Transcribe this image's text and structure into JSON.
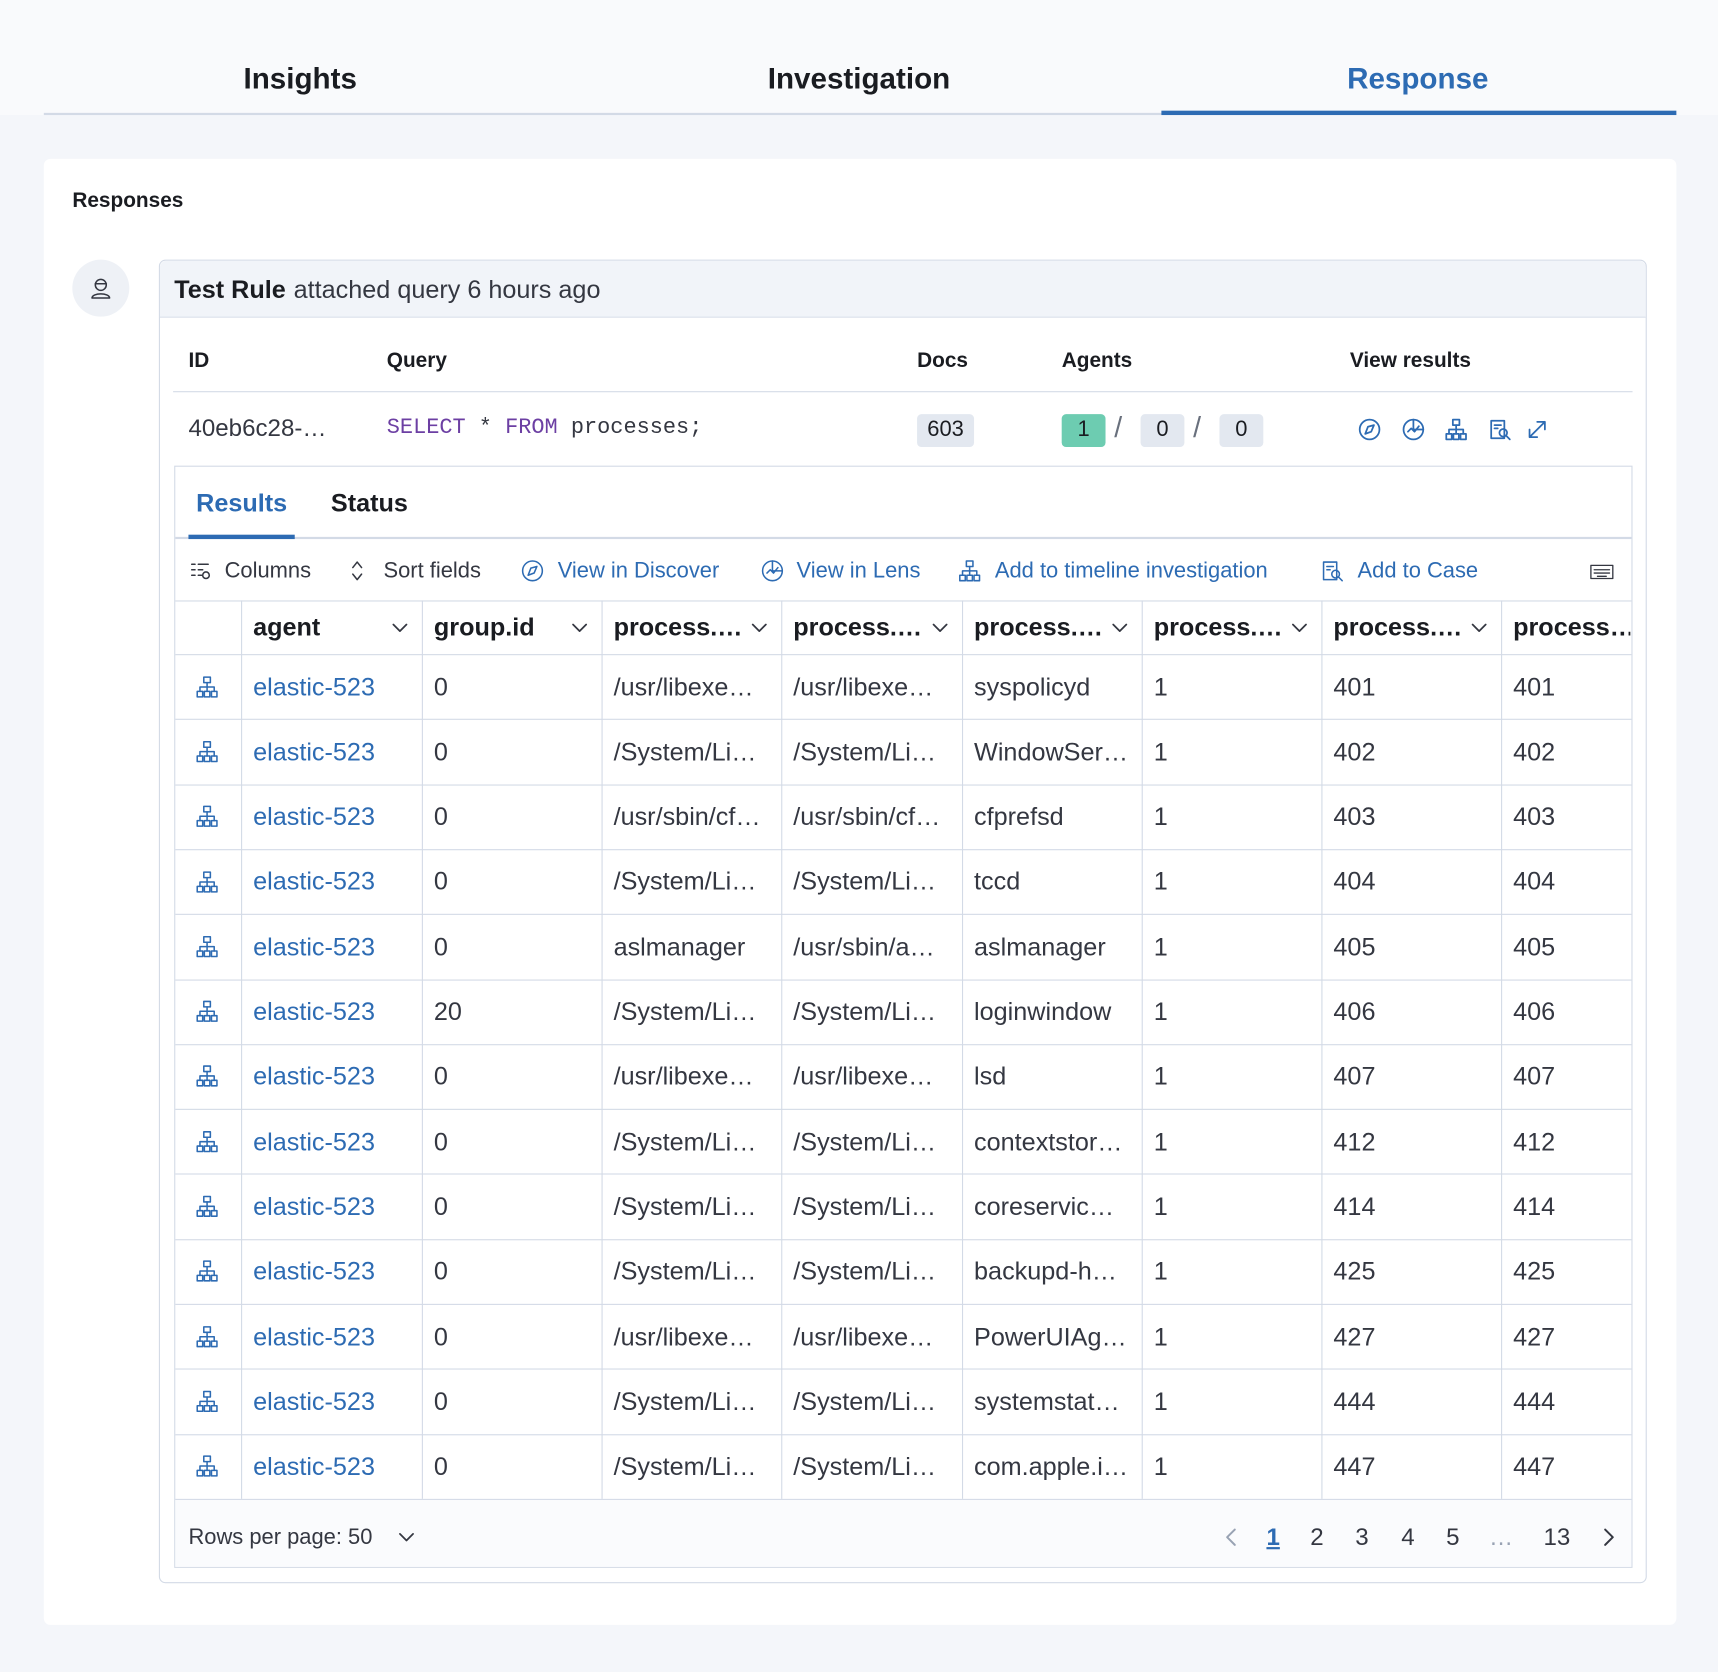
{
  "tabs": [
    "Insights",
    "Investigation",
    "Response"
  ],
  "section_title": "Responses",
  "response": {
    "actor": "Test Rule",
    "action": "attached query 6 hours ago",
    "columns": [
      "ID",
      "Query",
      "Docs",
      "Agents",
      "View results"
    ],
    "id": "40eb6c28-…",
    "query": [
      "SELECT",
      "*",
      "FROM",
      "processes;"
    ],
    "docs": "603",
    "agents": [
      "1",
      "0",
      "0"
    ],
    "agent_separator": "/"
  },
  "results": {
    "tabs": [
      "Results",
      "Status"
    ],
    "toolbar": [
      "Columns",
      "Sort fields",
      "View in Discover",
      "View in Lens",
      "Add to timeline investigation",
      "Add to Case"
    ],
    "columns": [
      "agent",
      "group.id",
      "process.…",
      "process.…",
      "process.…",
      "process.…",
      "process.…",
      "process…"
    ],
    "rows": [
      [
        "elastic-523",
        "0",
        "/usr/libexe…",
        "/usr/libexe…",
        "syspolicyd",
        "1",
        "401",
        "401"
      ],
      [
        "elastic-523",
        "0",
        "/System/Li…",
        "/System/Li…",
        "WindowSer…",
        "1",
        "402",
        "402"
      ],
      [
        "elastic-523",
        "0",
        "/usr/sbin/cf…",
        "/usr/sbin/cf…",
        "cfprefsd",
        "1",
        "403",
        "403"
      ],
      [
        "elastic-523",
        "0",
        "/System/Li…",
        "/System/Li…",
        "tccd",
        "1",
        "404",
        "404"
      ],
      [
        "elastic-523",
        "0",
        "aslmanager",
        "/usr/sbin/a…",
        "aslmanager",
        "1",
        "405",
        "405"
      ],
      [
        "elastic-523",
        "20",
        "/System/Li…",
        "/System/Li…",
        "loginwindow",
        "1",
        "406",
        "406"
      ],
      [
        "elastic-523",
        "0",
        "/usr/libexe…",
        "/usr/libexe…",
        "lsd",
        "1",
        "407",
        "407"
      ],
      [
        "elastic-523",
        "0",
        "/System/Li…",
        "/System/Li…",
        "contextstor…",
        "1",
        "412",
        "412"
      ],
      [
        "elastic-523",
        "0",
        "/System/Li…",
        "/System/Li…",
        "coreservic…",
        "1",
        "414",
        "414"
      ],
      [
        "elastic-523",
        "0",
        "/System/Li…",
        "/System/Li…",
        "backupd-h…",
        "1",
        "425",
        "425"
      ],
      [
        "elastic-523",
        "0",
        "/usr/libexe…",
        "/usr/libexe…",
        "PowerUIAg…",
        "1",
        "427",
        "427"
      ],
      [
        "elastic-523",
        "0",
        "/System/Li…",
        "/System/Li…",
        "systemstat…",
        "1",
        "444",
        "444"
      ],
      [
        "elastic-523",
        "0",
        "/System/Li…",
        "/System/Li…",
        "com.apple.i…",
        "1",
        "447",
        "447"
      ]
    ],
    "rows_per_page": "Rows per page: 50",
    "pages": [
      "1",
      "2",
      "3",
      "4",
      "5",
      "…",
      "13"
    ]
  }
}
